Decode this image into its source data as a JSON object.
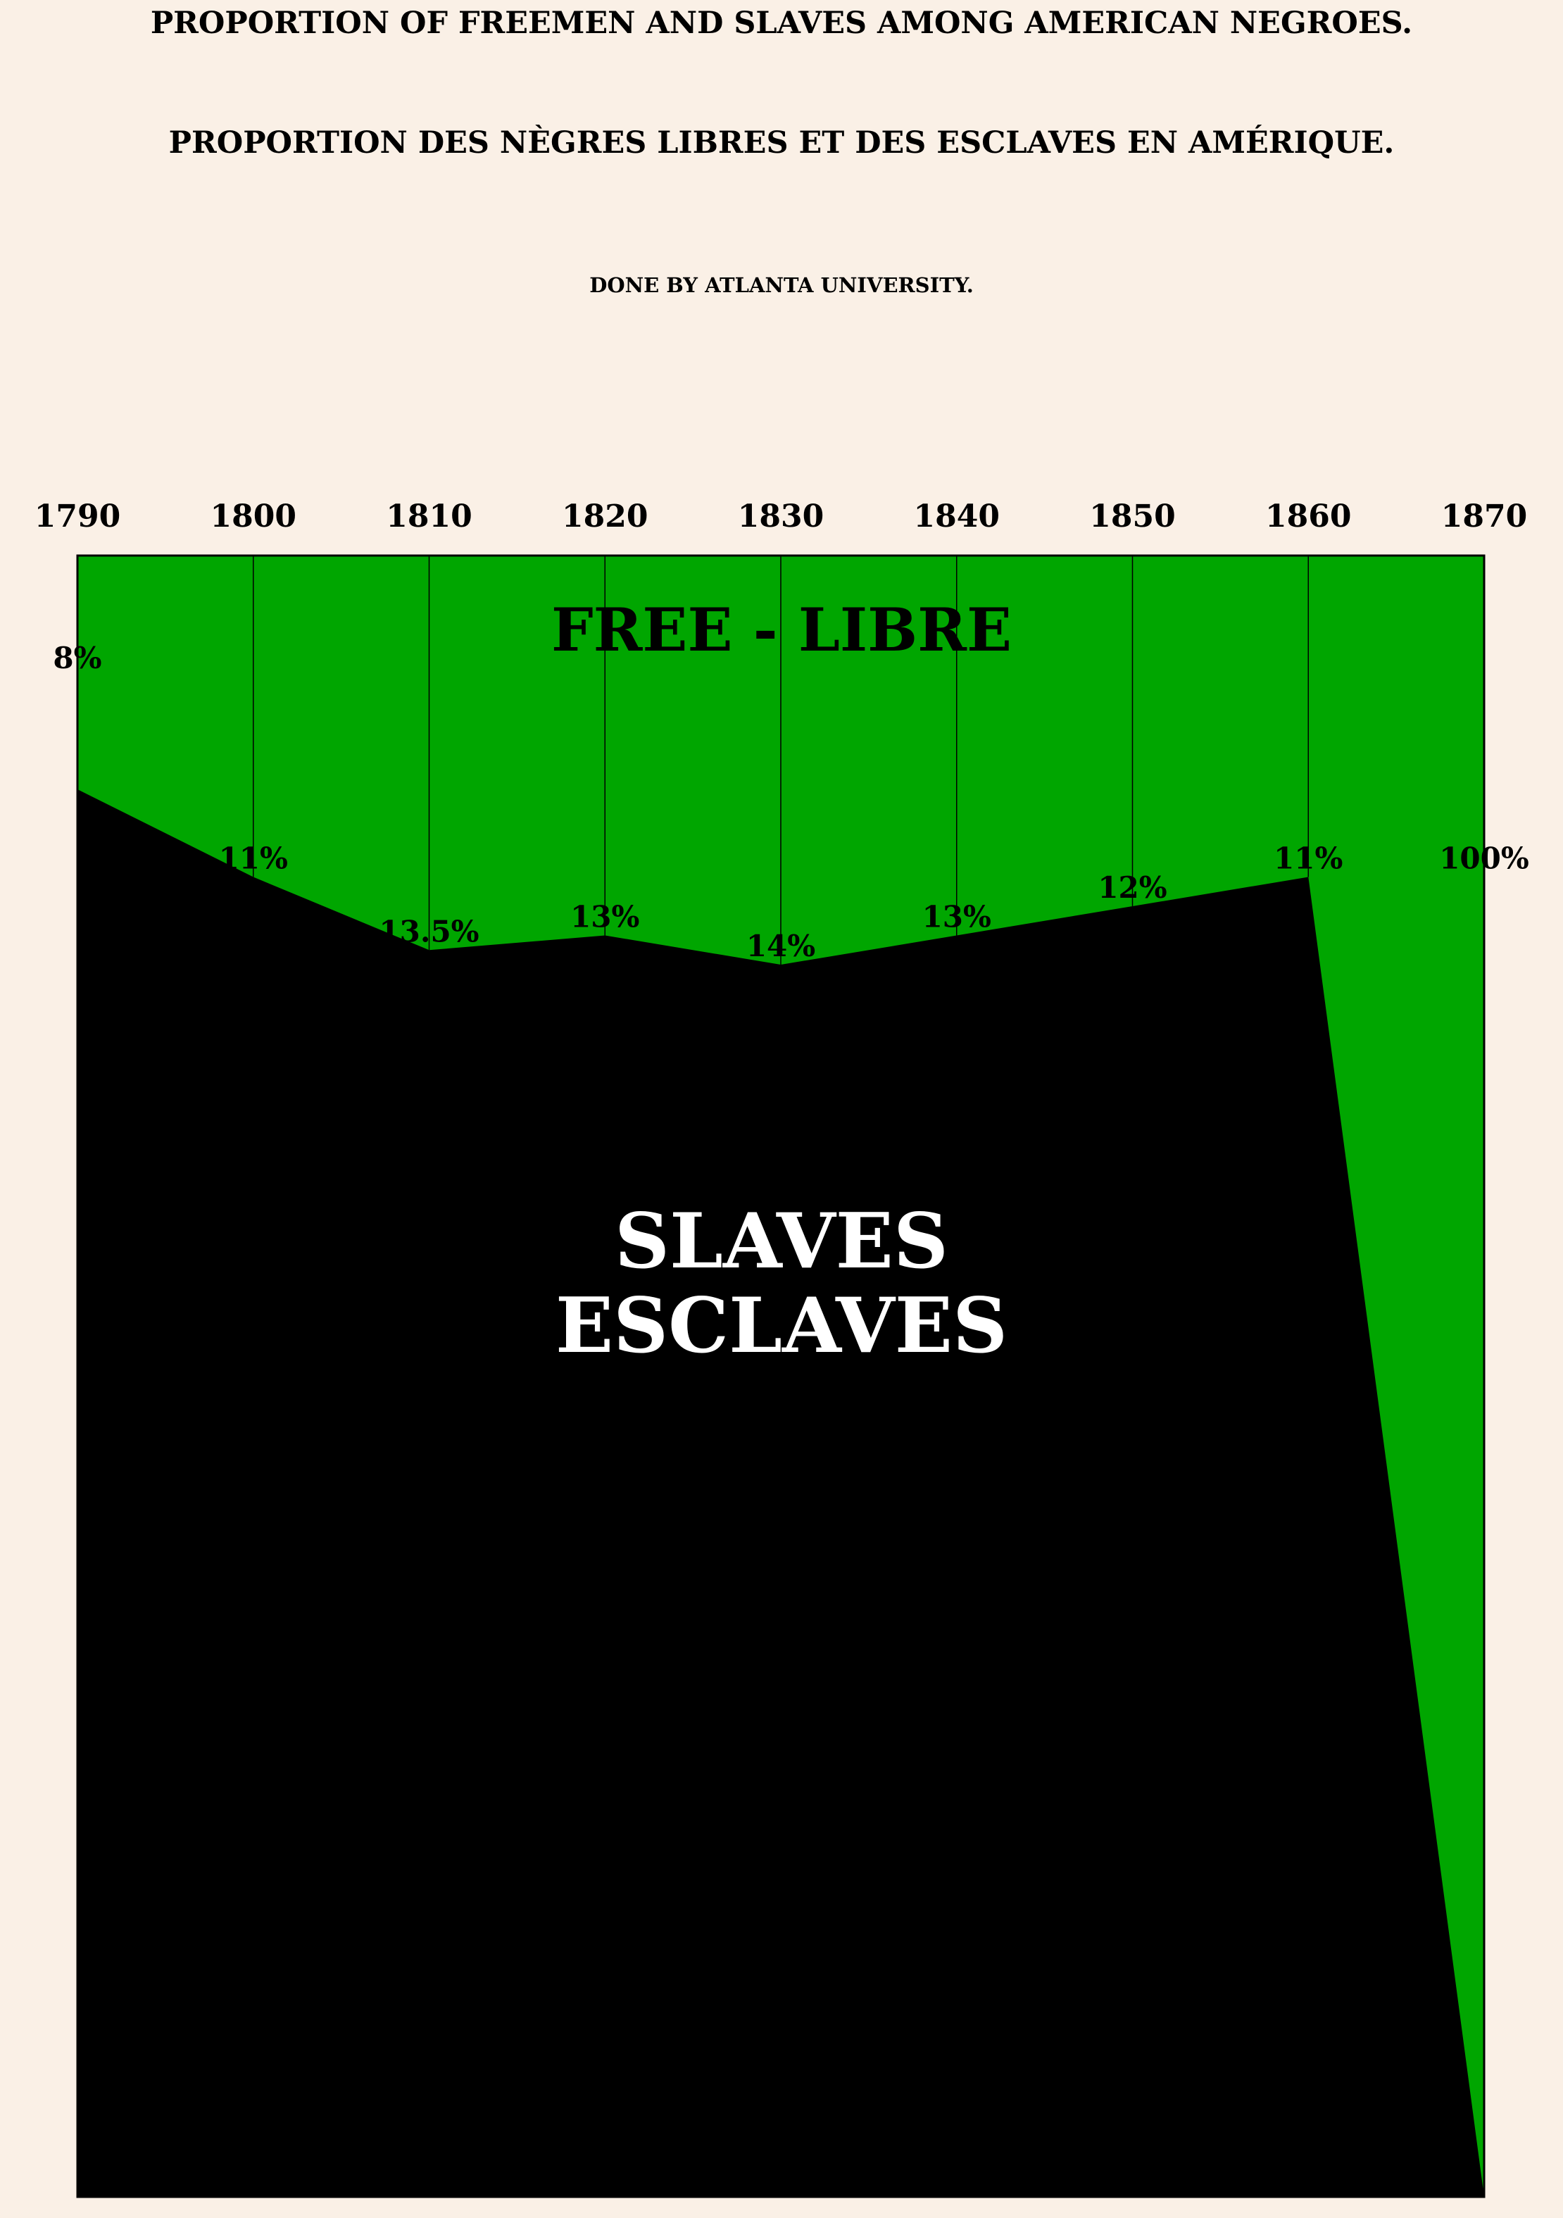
{
  "titles": {
    "english": "PROPORTION OF FREEMEN AND SLAVES AMONG AMERICAN NEGROES.",
    "french": "PROPORTION DES NÈGRES LIBRES ET DES ESCLAVES EN AMÉRIQUE.",
    "credit": "DONE BY ATLANTA UNIVERSITY."
  },
  "colors": {
    "background": "#faf0e6",
    "free": "#00a600",
    "slaves": "#000000",
    "slaves_label": "#ffffff"
  },
  "chart_data": {
    "type": "area",
    "x": [
      1790,
      1800,
      1810,
      1820,
      1830,
      1840,
      1850,
      1860,
      1870
    ],
    "free_percent": [
      8,
      11,
      13.5,
      13,
      14,
      13,
      12,
      11,
      100
    ],
    "free_labels": [
      "8%",
      "11%",
      "13.5%",
      "13%",
      "14%",
      "13%",
      "12%",
      "11%",
      "100%"
    ],
    "xlabel_position": "top",
    "free_label": "FREE - LIBRE",
    "slaves_label_lines": [
      "SLAVES",
      "ESCLAVES"
    ],
    "grid": true
  }
}
